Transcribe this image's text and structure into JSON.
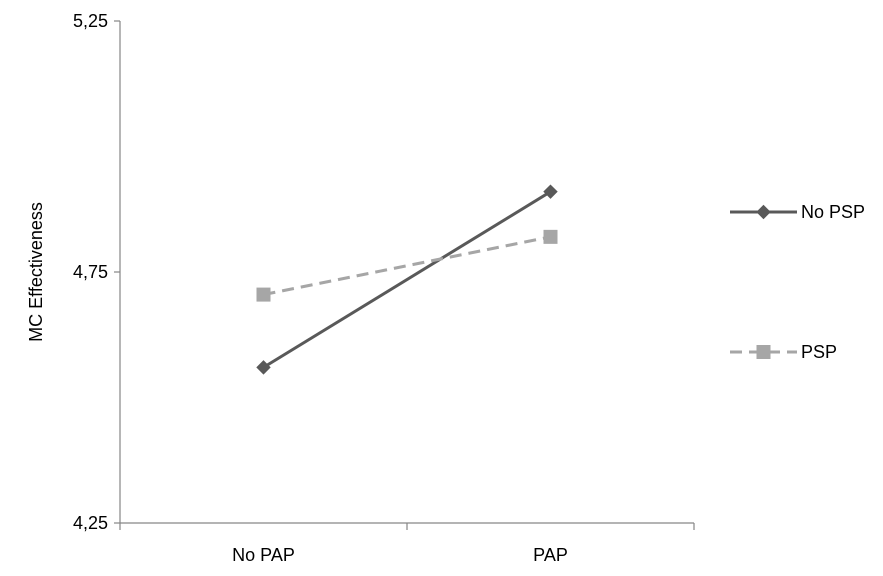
{
  "chart_data": {
    "type": "line",
    "title": "",
    "xlabel": "",
    "ylabel": "MC Effectiveness",
    "categories": [
      "No PAP",
      "PAP"
    ],
    "ylim": [
      4.25,
      5.25
    ],
    "yticks": [
      4.25,
      4.75,
      5.25
    ],
    "ytick_labels": [
      "4,25",
      "4,75",
      "5,25"
    ],
    "grid": false,
    "legend_position": "right",
    "series": [
      {
        "name": "No PSP",
        "values": [
          4.56,
          4.91
        ],
        "color": "#595959",
        "line_style": "solid",
        "marker": "diamond"
      },
      {
        "name": "PSP",
        "values": [
          4.705,
          4.82
        ],
        "color": "#a6a6a6",
        "line_style": "dashed",
        "marker": "square"
      }
    ]
  }
}
